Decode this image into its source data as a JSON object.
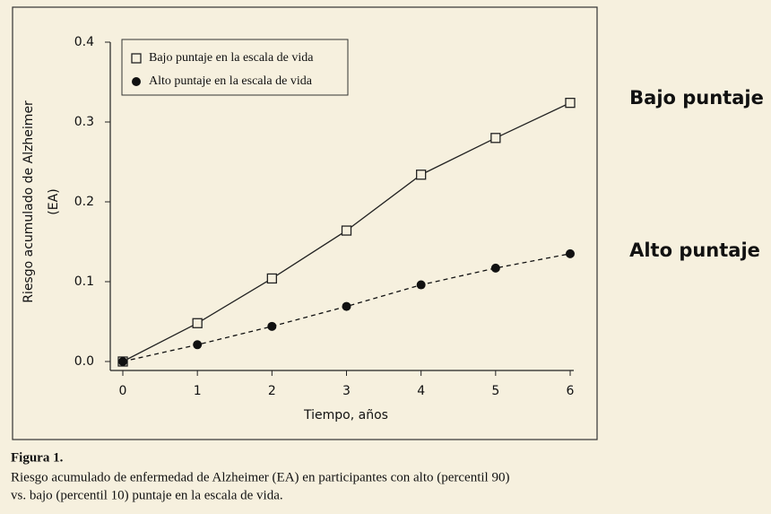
{
  "chart_data": {
    "type": "line",
    "x_label": "Tiempo, años",
    "y_label": [
      "Riesgo acumulado de Alzheimer",
      "(EA)"
    ],
    "x": [
      0,
      1,
      2,
      3,
      4,
      5,
      6
    ],
    "xlim": [
      0,
      6
    ],
    "xticks": [
      0,
      1,
      2,
      3,
      4,
      5,
      6
    ],
    "ylim": [
      0,
      0.4
    ],
    "yticks": [
      {
        "value": 0,
        "label": "0.0"
      },
      0.1,
      0.2,
      0.3,
      0.4
    ],
    "series": [
      {
        "name": "Bajo puntaje en la escala de vida",
        "color": "#222222",
        "marker": "square",
        "dashed": false,
        "values": [
          0,
          0.048,
          0.104,
          0.164,
          0.234,
          0.28,
          0.324
        ]
      },
      {
        "name": "Alto puntaje en la escala de vida",
        "color": "#111111",
        "marker": "circle",
        "dashed": true,
        "values": [
          0,
          0.021,
          0.044,
          0.069,
          0.096,
          0.117,
          0.135
        ]
      }
    ],
    "annotations": [
      "Bajo puntaje",
      "Alto puntaje"
    ],
    "caption_title": "Figura 1.",
    "caption": [
      "Riesgo acumulado de enfermedad de Alzheimer (EA) en participantes con alto (percentil 90)",
      "vs. bajo (percentil 10) puntaje en la escala de vida."
    ]
  }
}
